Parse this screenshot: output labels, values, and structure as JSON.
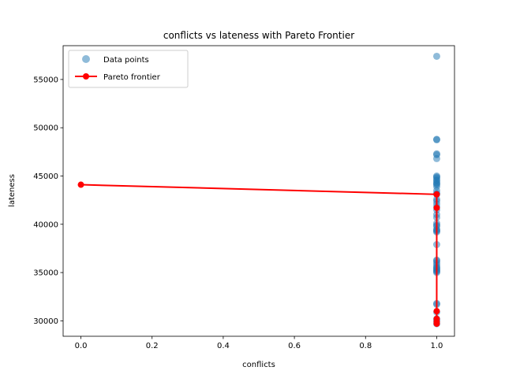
{
  "chart_data": {
    "type": "scatter",
    "title": "conflicts vs lateness with Pareto Frontier",
    "xlabel": "conflicts",
    "ylabel": "lateness",
    "xlim": [
      -0.05,
      1.05
    ],
    "ylim": [
      28400,
      58500
    ],
    "xticks": [
      0.0,
      0.2,
      0.4,
      0.6,
      0.8,
      1.0
    ],
    "xtick_labels": [
      "0.0",
      "0.2",
      "0.4",
      "0.6",
      "0.8",
      "1.0"
    ],
    "yticks": [
      30000,
      35000,
      40000,
      45000,
      50000,
      55000
    ],
    "ytick_labels": [
      "30000",
      "35000",
      "40000",
      "45000",
      "50000",
      "55000"
    ],
    "legend_position": "top-left",
    "series": [
      {
        "name": "Data points",
        "kind": "scatter",
        "color": "#1f77b4",
        "x": [
          1,
          1,
          1,
          1,
          1,
          1,
          1,
          1,
          1,
          1,
          1,
          1,
          1,
          1,
          1,
          1,
          1,
          1,
          1,
          1,
          1,
          1,
          1,
          1,
          1,
          1,
          1,
          1,
          1,
          1,
          1,
          1,
          1,
          1,
          1,
          1,
          1,
          1,
          1,
          1,
          1,
          1,
          1,
          1,
          1,
          1,
          1,
          1,
          1,
          1
        ],
        "y": [
          57400,
          48800,
          48750,
          47300,
          47200,
          46800,
          45000,
          44900,
          44800,
          44600,
          44500,
          44300,
          44200,
          43500,
          43200,
          43100,
          42600,
          42400,
          42100,
          41800,
          41500,
          41000,
          40700,
          40100,
          39800,
          39500,
          39300,
          39200,
          37900,
          36300,
          36000,
          35800,
          35600,
          35500,
          35300,
          35200,
          35100,
          35000,
          31800,
          31700,
          30900,
          30200,
          30000,
          29700,
          44100,
          43900,
          39900,
          39400,
          36200,
          35400
        ]
      },
      {
        "name": "Pareto frontier",
        "kind": "line",
        "color": "#ff0000",
        "x": [
          0,
          1,
          1,
          1,
          1,
          1,
          1
        ],
        "y": [
          44100,
          43100,
          41700,
          31000,
          30200,
          29900,
          29700
        ]
      }
    ]
  }
}
